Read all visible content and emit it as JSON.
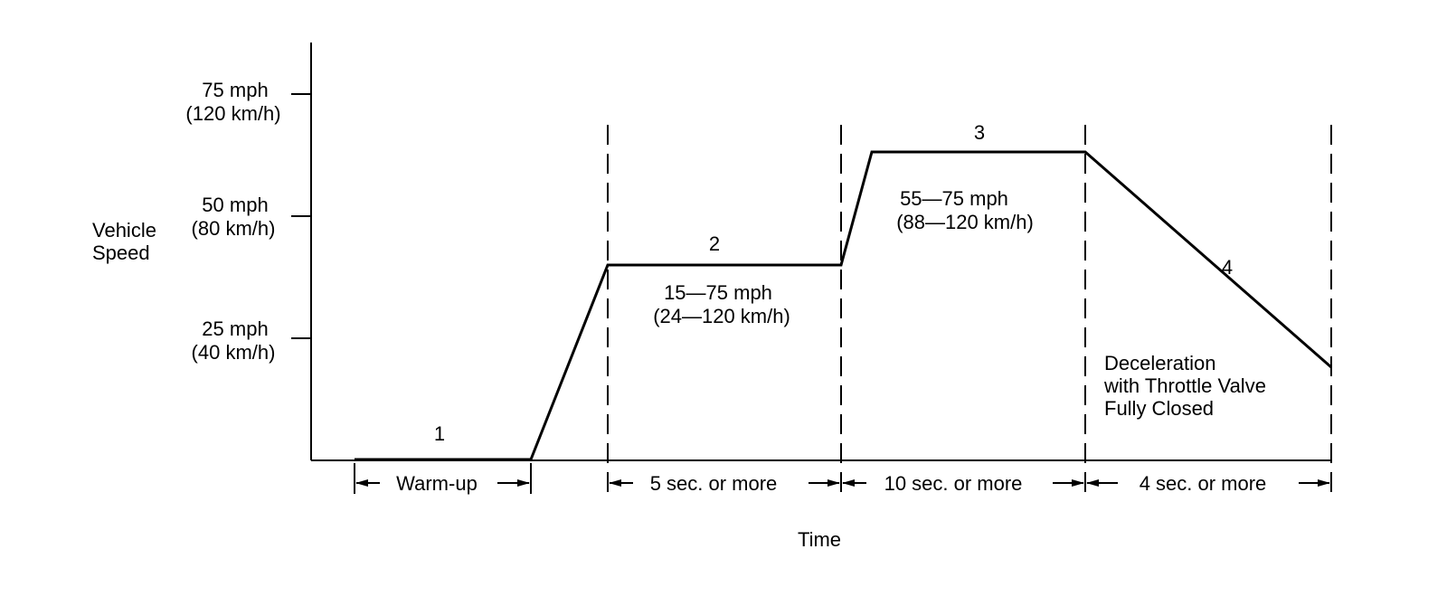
{
  "y_axis": {
    "title_line1": "Vehicle",
    "title_line2": "Speed",
    "ticks": [
      {
        "line1": "75 mph",
        "line2": "(120 km/h)"
      },
      {
        "line1": "50 mph",
        "line2": "(80 km/h)"
      },
      {
        "line1": "25 mph",
        "line2": "(40 km/h)"
      }
    ]
  },
  "x_axis": {
    "title": "Time"
  },
  "phases": [
    {
      "number": "1",
      "duration": "Warm-up"
    },
    {
      "number": "2",
      "duration": "5 sec. or more",
      "speed_line1": "15—75 mph",
      "speed_line2": "(24—120 km/h)"
    },
    {
      "number": "3",
      "duration": "10 sec. or more",
      "speed_line1": "55—75 mph",
      "speed_line2": "(88—120 km/h)"
    },
    {
      "number": "4",
      "duration": "4 sec. or more",
      "note_line1": "Deceleration",
      "note_line2": "with Throttle Valve",
      "note_line3": "Fully Closed"
    }
  ],
  "colors": {
    "line": "#000000",
    "background": "#ffffff"
  }
}
